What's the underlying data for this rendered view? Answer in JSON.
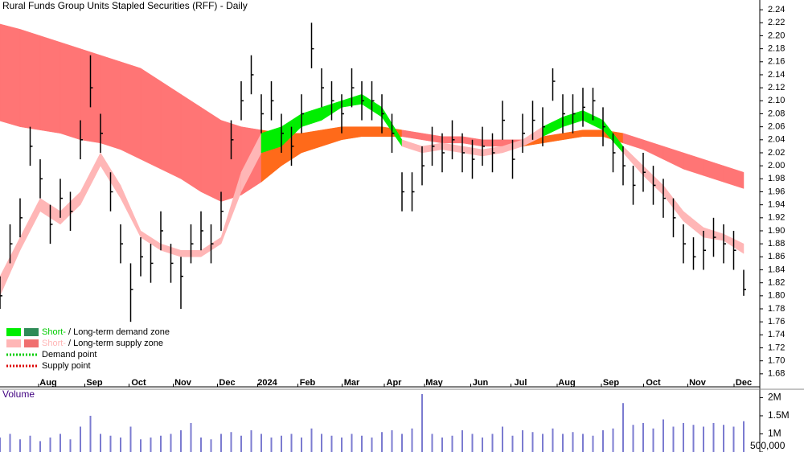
{
  "chart_data": {
    "type": "ohlc",
    "title": "Rural Funds Group Units Stapled Securities (RFF) - Daily",
    "x": [
      0,
      5,
      10,
      15,
      20,
      25,
      30,
      35,
      40,
      45,
      50,
      55,
      60,
      65,
      70,
      75,
      80,
      85,
      90,
      95,
      100,
      105,
      110,
      115,
      120,
      125,
      130,
      135,
      140,
      145,
      150,
      155,
      160,
      165,
      170,
      175,
      180,
      185,
      190,
      195,
      200,
      205,
      210,
      215,
      220,
      225,
      230,
      235,
      240,
      245,
      250,
      255,
      260,
      265,
      270,
      275,
      280,
      285,
      290,
      295,
      300,
      305,
      310,
      315,
      320,
      325,
      330,
      335,
      340,
      345,
      350,
      355,
      360,
      365,
      370
    ],
    "high": [
      1.83,
      1.91,
      1.95,
      2.06,
      2.01,
      1.94,
      1.98,
      1.96,
      2.07,
      2.17,
      2.08,
      1.99,
      1.91,
      1.85,
      1.89,
      1.88,
      1.93,
      1.88,
      1.86,
      1.91,
      1.93,
      1.91,
      1.96,
      2.07,
      2.13,
      2.17,
      2.11,
      2.13,
      2.08,
      2.06,
      2.11,
      2.22,
      2.15,
      2.13,
      2.11,
      2.15,
      2.13,
      2.13,
      2.11,
      2.08,
      1.99,
      1.99,
      2.03,
      2.06,
      2.05,
      2.07,
      2.05,
      2.04,
      2.06,
      2.05,
      2.1,
      2.04,
      2.08,
      2.1,
      2.09,
      2.15,
      2.11,
      2.11,
      2.12,
      2.12,
      2.09,
      2.05,
      2.03,
      2.0,
      2.02,
      2.0,
      1.98,
      1.95,
      1.91,
      1.89,
      1.9,
      1.92,
      1.91,
      1.9,
      1.84
    ],
    "low": [
      1.78,
      1.85,
      1.89,
      2.0,
      1.95,
      1.88,
      1.92,
      1.9,
      2.01,
      2.09,
      2.02,
      1.93,
      1.85,
      1.76,
      1.83,
      1.82,
      1.87,
      1.82,
      1.78,
      1.85,
      1.87,
      1.85,
      1.9,
      2.01,
      2.07,
      2.11,
      2.05,
      2.07,
      2.02,
      2.0,
      2.05,
      2.15,
      2.09,
      2.07,
      2.05,
      2.09,
      2.07,
      2.07,
      2.05,
      2.02,
      1.93,
      1.93,
      1.97,
      2.0,
      1.99,
      2.01,
      1.99,
      1.98,
      2.0,
      1.99,
      2.04,
      1.98,
      2.02,
      2.04,
      2.03,
      2.1,
      2.05,
      2.05,
      2.06,
      2.07,
      2.03,
      1.99,
      1.97,
      1.94,
      1.96,
      1.94,
      1.92,
      1.89,
      1.85,
      1.84,
      1.84,
      1.86,
      1.85,
      1.84,
      1.8
    ],
    "close": [
      1.8,
      1.88,
      1.92,
      2.03,
      1.98,
      1.91,
      1.95,
      1.93,
      2.04,
      2.12,
      2.05,
      1.96,
      1.88,
      1.81,
      1.86,
      1.85,
      1.9,
      1.85,
      1.83,
      1.88,
      1.9,
      1.88,
      1.93,
      2.04,
      2.1,
      2.14,
      2.08,
      2.1,
      2.05,
      2.03,
      2.08,
      2.18,
      2.12,
      2.1,
      2.08,
      2.12,
      2.1,
      2.1,
      2.08,
      2.05,
      1.96,
      1.96,
      2.0,
      2.03,
      2.02,
      2.04,
      2.02,
      2.01,
      2.03,
      2.02,
      2.07,
      2.01,
      2.05,
      2.07,
      2.06,
      2.13,
      2.08,
      2.08,
      2.09,
      2.1,
      2.06,
      2.02,
      2.0,
      1.97,
      1.99,
      1.97,
      1.95,
      1.92,
      1.88,
      1.86,
      1.87,
      1.89,
      1.88,
      1.87,
      1.81
    ],
    "color": "#000000",
    "zones": {
      "x": [
        0,
        10,
        20,
        30,
        40,
        50,
        60,
        70,
        80,
        90,
        100,
        110,
        120,
        130,
        140,
        150,
        160,
        170,
        180,
        190,
        200,
        210,
        220,
        230,
        240,
        250,
        260,
        270,
        280,
        290,
        300,
        310,
        320,
        330,
        340,
        350,
        360,
        370
      ],
      "short_upper": [
        1.83,
        1.89,
        1.95,
        1.93,
        1.96,
        2.02,
        1.97,
        1.9,
        1.88,
        1.87,
        1.87,
        1.89,
        1.99,
        2.05,
        2.06,
        2.08,
        2.09,
        2.1,
        2.11,
        2.09,
        2.04,
        2.03,
        2.035,
        2.03,
        2.025,
        2.03,
        2.04,
        2.06,
        2.075,
        2.085,
        2.07,
        2.03,
        2.0,
        1.97,
        1.93,
        1.905,
        1.895,
        1.88
      ],
      "short_lower": [
        1.8,
        1.87,
        1.93,
        1.91,
        1.94,
        2.0,
        1.95,
        1.89,
        1.87,
        1.86,
        1.86,
        1.88,
        1.96,
        2.02,
        2.03,
        2.06,
        2.07,
        2.09,
        2.095,
        2.075,
        2.03,
        2.02,
        2.025,
        2.02,
        2.015,
        2.02,
        2.03,
        2.045,
        2.06,
        2.07,
        2.055,
        2.02,
        1.985,
        1.955,
        1.915,
        1.89,
        1.885,
        1.865
      ],
      "long_upper": [
        2.218,
        2.21,
        2.2,
        2.19,
        2.18,
        2.17,
        2.16,
        2.15,
        2.13,
        2.11,
        2.09,
        2.07,
        2.06,
        2.055,
        2.05,
        2.05,
        2.055,
        2.06,
        2.06,
        2.06,
        2.055,
        2.05,
        2.045,
        2.045,
        2.04,
        2.04,
        2.04,
        2.045,
        2.05,
        2.055,
        2.055,
        2.05,
        2.04,
        2.03,
        2.02,
        2.01,
        2.0,
        1.99
      ],
      "long_lower": [
        2.069,
        2.06,
        2.055,
        2.05,
        2.04,
        2.035,
        2.025,
        2.01,
        1.995,
        1.98,
        1.96,
        1.945,
        1.955,
        1.975,
        2.0,
        2.02,
        2.03,
        2.04,
        2.045,
        2.045,
        2.045,
        2.04,
        2.035,
        2.035,
        2.03,
        2.03,
        2.03,
        2.035,
        2.04,
        2.045,
        2.045,
        2.035,
        2.025,
        2.01,
        1.995,
        1.985,
        1.975,
        1.965
      ],
      "short_demand_color": "#00ee00",
      "short_supply_color": "#ffb6b6",
      "long_demand_color": "#ff6a1a",
      "long_supply_color": "#ff7575"
    },
    "xlim": [
      0,
      378
    ],
    "xticks": [
      {
        "value": 24,
        "label": "Aug"
      },
      {
        "value": 47,
        "label": "Sep"
      },
      {
        "value": 69,
        "label": "Oct"
      },
      {
        "value": 91,
        "label": "Nov"
      },
      {
        "value": 113,
        "label": "Dec"
      },
      {
        "value": 133,
        "label": "2024"
      },
      {
        "value": 153,
        "label": "Feb"
      },
      {
        "value": 175,
        "label": "Mar"
      },
      {
        "value": 196,
        "label": "Apr"
      },
      {
        "value": 216,
        "label": "May"
      },
      {
        "value": 239,
        "label": "Jun"
      },
      {
        "value": 259,
        "label": "Jul"
      },
      {
        "value": 282,
        "label": "Aug"
      },
      {
        "value": 304,
        "label": "Sep"
      },
      {
        "value": 325,
        "label": "Oct"
      },
      {
        "value": 347,
        "label": "Nov"
      },
      {
        "value": 370,
        "label": "Dec"
      }
    ],
    "ylim": [
      1.66,
      2.255
    ],
    "yticks": [
      1.68,
      {
        "value": 1.7,
        "label": "1.70"
      },
      1.72,
      1.74,
      1.76,
      1.78,
      {
        "value": 1.8,
        "label": "1.80"
      },
      1.82,
      1.84,
      1.86,
      1.88,
      {
        "value": 1.9,
        "label": "1.90"
      },
      1.92,
      1.94,
      1.96,
      1.98,
      {
        "value": 2,
        "label": "2.00"
      },
      2.02,
      2.04,
      2.06,
      2.08,
      {
        "value": 2.1,
        "label": "2.10"
      },
      2.12,
      2.14,
      2.16,
      2.18,
      {
        "value": 2.2,
        "label": "2.20"
      },
      2.22,
      2.24
    ],
    "legend": [
      {
        "swatches": [
          "#00ee00",
          "#2e8b57"
        ],
        "parts": [
          "Short-",
          "/ Long-term demand zone"
        ],
        "part_colors": [
          "#00cc00",
          "#000000"
        ]
      },
      {
        "swatches": [
          "#ffb6b6",
          "#f07070"
        ],
        "parts": [
          "Short-",
          "/ Long-term supply zone"
        ],
        "part_colors": [
          "#ffb6b6",
          "#000000"
        ]
      },
      {
        "dotted": "#00cc00",
        "parts": [
          "Demand point"
        ],
        "part_colors": [
          "#000000"
        ]
      },
      {
        "dotted": "#dd0000",
        "parts": [
          "Supply point"
        ],
        "part_colors": [
          "#000000"
        ]
      }
    ],
    "volume": {
      "label": "Volume",
      "color": "#7b7bd0",
      "values": [
        900000,
        1000000,
        850000,
        950000,
        800000,
        900000,
        1000000,
        850000,
        1200000,
        1500000,
        1000000,
        950000,
        900000,
        1200000,
        850000,
        900000,
        950000,
        1000000,
        1100000,
        1300000,
        900000,
        850000,
        1000000,
        1050000,
        950000,
        1100000,
        1000000,
        900000,
        950000,
        1000000,
        900000,
        1150000,
        1000000,
        950000,
        900000,
        1000000,
        950000,
        900000,
        1050000,
        1100000,
        1000000,
        1150000,
        2100000,
        1000000,
        900000,
        950000,
        1100000,
        1000000,
        900000,
        1000000,
        1200000,
        950000,
        1100000,
        1050000,
        1000000,
        1150000,
        1000000,
        1050000,
        1000000,
        950000,
        1100000,
        1150000,
        1850000,
        1250000,
        1300000,
        1150000,
        1400000,
        1200000,
        1300000,
        1250000,
        1200000,
        1300000,
        1250000,
        1200000,
        1350000
      ],
      "ylim": [
        500000,
        2210000
      ],
      "yticks": [
        {
          "value": 500000,
          "label": "500,000"
        },
        {
          "value": 1000000,
          "label": "1M"
        },
        {
          "value": 1500000,
          "label": "1.5M"
        },
        {
          "value": 2000000,
          "label": "2M"
        }
      ]
    }
  }
}
